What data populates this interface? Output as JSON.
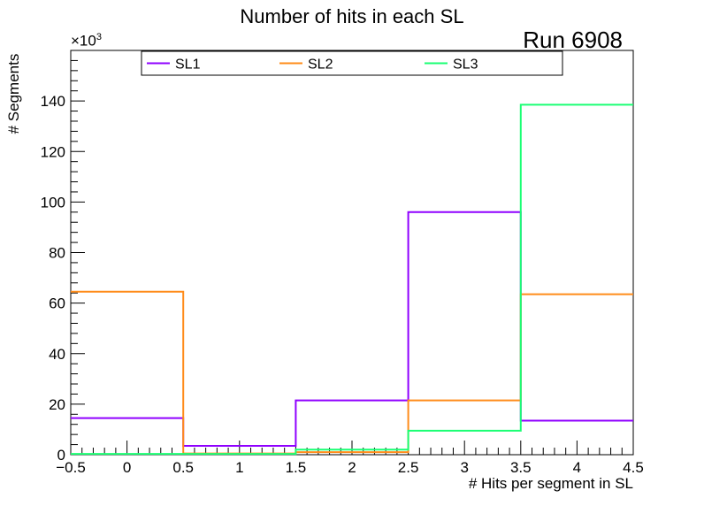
{
  "chart_data": {
    "type": "step",
    "title": "Number of hits in each SL",
    "annotation": "Run 6908",
    "xlabel": "# Hits per segment in SL",
    "ylabel": "# Segments",
    "y_multiplier": "×10",
    "y_multiplier_exp": "3",
    "xlim": [
      -0.5,
      4.5
    ],
    "ylim": [
      0,
      160
    ],
    "x_ticks": [
      -0.5,
      0,
      0.5,
      1,
      1.5,
      2,
      2.5,
      3,
      3.5,
      4,
      4.5
    ],
    "x_tick_labels": [
      "−0.5",
      "0",
      "0.5",
      "1",
      "1.5",
      "2",
      "2.5",
      "3",
      "3.5",
      "4",
      "4.5"
    ],
    "y_ticks": [
      0,
      20,
      40,
      60,
      80,
      100,
      120,
      140
    ],
    "y_tick_labels": [
      "0",
      "20",
      "40",
      "60",
      "80",
      "100",
      "120",
      "140"
    ],
    "bin_edges": [
      -0.5,
      0.5,
      1.5,
      2.5,
      3.5,
      4.5
    ],
    "series": [
      {
        "name": "SL1",
        "color": "#8f00ff",
        "values": [
          14.5,
          3.5,
          21.5,
          96,
          13.5
        ]
      },
      {
        "name": "SL2",
        "color": "#ff8c1a",
        "values": [
          64.5,
          0.5,
          1.0,
          21.5,
          63.5
        ]
      },
      {
        "name": "SL3",
        "color": "#1aff73",
        "values": [
          0.3,
          0.3,
          2.0,
          9.5,
          138.5
        ]
      }
    ],
    "legend_position": "top"
  }
}
